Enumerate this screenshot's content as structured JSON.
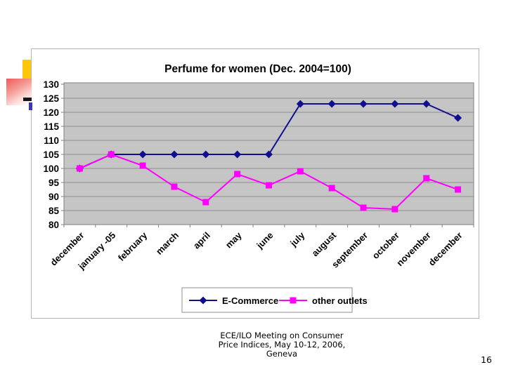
{
  "slide": {
    "footer": {
      "lines": [
        "ECE/ILO Meeting on Consumer",
        "Price Indices, May 10-12, 2006,",
        "Geneva"
      ]
    },
    "page_number": "16"
  },
  "decor_colors": {
    "yellow_bar": "#FFC60A",
    "pink_block": "#EF5A5A",
    "black_dash": "#161616",
    "blue_dash": "#3A3AB8"
  },
  "chart_data": {
    "type": "line",
    "title": "Perfume for women (Dec. 2004=100)",
    "categories": [
      "december",
      "january -05",
      "february",
      "march",
      "april",
      "may",
      "june",
      "july",
      "august",
      "september",
      "october",
      "november",
      "december"
    ],
    "series": [
      {
        "name": "E-Commerce",
        "marker": "diamond",
        "color": "#10108E",
        "values": [
          100,
          105,
          105,
          105,
          105,
          105,
          105,
          123,
          123,
          123,
          123,
          123,
          118
        ]
      },
      {
        "name": "other outlets",
        "marker": "square",
        "color": "#FF00FF",
        "values": [
          100,
          105,
          101,
          93.5,
          88,
          98,
          94,
          99,
          93,
          86,
          85.5,
          96.5,
          92.5
        ]
      }
    ],
    "ylim": [
      80,
      130
    ],
    "yticks": [
      80,
      85,
      90,
      95,
      100,
      105,
      110,
      115,
      120,
      125,
      130
    ],
    "grid": true,
    "legend_position": "bottom",
    "plot_bg": "#C5C5C5",
    "grid_color": "#8F8F8F",
    "axis_color": "#7F7F7F"
  }
}
